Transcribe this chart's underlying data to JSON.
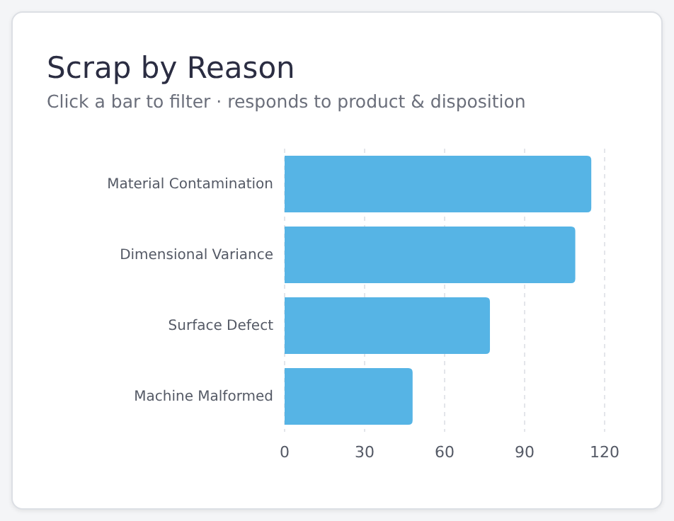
{
  "chart_data": {
    "type": "bar",
    "orientation": "horizontal",
    "title": "Scrap by Reason",
    "subtitle": "Click a bar to filter · responds to product & disposition",
    "categories": [
      "Material Contamination",
      "Dimensional Variance",
      "Surface Defect",
      "Machine Malformed"
    ],
    "values": [
      115,
      109,
      77,
      48
    ],
    "color": "#56b4e5",
    "xlim": [
      0,
      120
    ],
    "xticks": [
      0,
      30,
      60,
      90,
      120
    ],
    "grid": "x"
  }
}
